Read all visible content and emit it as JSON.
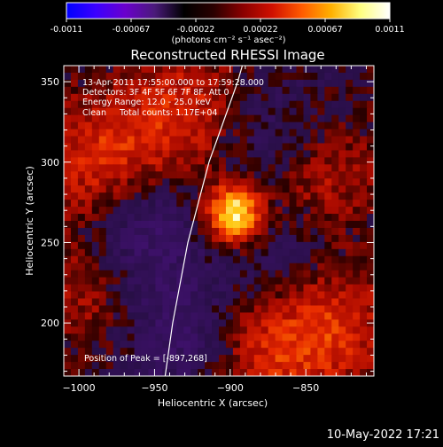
{
  "colorbar": {
    "tick_labels": [
      "-0.0011",
      "-0.00067",
      "-0.00022",
      "0.00022",
      "0.00067",
      "0.0011"
    ],
    "units_label": "(photons cm⁻² s⁻¹ asec⁻²)",
    "colors": [
      "#0000ff",
      "#3b00ff",
      "#6a00cc",
      "#4a1a7a",
      "#000000",
      "#2a0000",
      "#8a0000",
      "#d01000",
      "#ff5a00",
      "#ffb000",
      "#ffff80",
      "#ffffff"
    ]
  },
  "chart_data": {
    "type": "heatmap",
    "title": "Reconstructed RHESSI Image",
    "xlabel": "Heliocentric X (arcsec)",
    "ylabel": "Heliocentric Y (arcsec)",
    "xlim": [
      -1010,
      -805
    ],
    "ylim": [
      167,
      360
    ],
    "x_ticks": [
      -1000,
      -950,
      -900,
      -850
    ],
    "x_tick_labels": [
      "−1000",
      "−950",
      "−900",
      "−850"
    ],
    "y_ticks": [
      200,
      250,
      300,
      350
    ],
    "y_tick_labels": [
      "200",
      "250",
      "300",
      "350"
    ],
    "peak": [
      -897,
      268
    ],
    "limb_points": [
      [
        -943,
        167
      ],
      [
        -938,
        200
      ],
      [
        -928,
        250
      ],
      [
        -914,
        300
      ],
      [
        -895,
        350
      ],
      [
        -892,
        360
      ]
    ],
    "emission_regions": [
      {
        "center": [
          -897,
          268
        ],
        "strength": 1.0,
        "kind": "peak"
      },
      {
        "center": [
          -985,
          300
        ],
        "strength": 0.45,
        "kind": "positive"
      },
      {
        "center": [
          -930,
          330
        ],
        "strength": 0.4,
        "kind": "positive"
      },
      {
        "center": [
          -845,
          290
        ],
        "strength": 0.4,
        "kind": "positive"
      },
      {
        "center": [
          -835,
          200
        ],
        "strength": 0.45,
        "kind": "positive"
      },
      {
        "center": [
          -880,
          180
        ],
        "strength": 0.35,
        "kind": "positive"
      },
      {
        "center": [
          -1000,
          220
        ],
        "strength": 0.25,
        "kind": "positive"
      },
      {
        "center": [
          -960,
          260
        ],
        "strength": -0.35,
        "kind": "negative"
      },
      {
        "center": [
          -870,
          310
        ],
        "strength": -0.3,
        "kind": "negative"
      },
      {
        "center": [
          -930,
          190
        ],
        "strength": -0.3,
        "kind": "negative"
      },
      {
        "center": [
          -860,
          240
        ],
        "strength": -0.25,
        "kind": "negative"
      }
    ],
    "annotations": [
      "13-Apr-2011 17:55:00.000 to 17:59:28.000",
      "Detectors: 3F 4F 5F 6F 7F 8F, Att 0",
      "Energy Range: 12.0 - 25.0 keV",
      "Clean     Total counts: 1.17E+04"
    ],
    "peak_label": "Position of Peak = [-897,268]"
  },
  "footer": {
    "date_text": "10-May-2022 17:21"
  }
}
